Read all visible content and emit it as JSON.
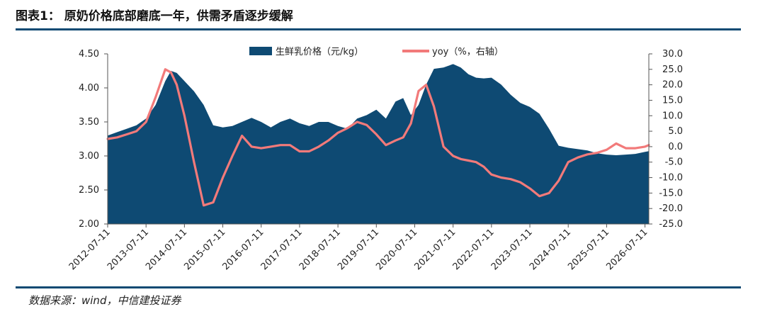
{
  "header": {
    "title": "图表1：    原奶价格底部磨底一年，供需矛盾逐步缓解"
  },
  "footer": {
    "source": "数据来源：wind，中信建投证券"
  },
  "colors": {
    "area": "#0e4a73",
    "line": "#f27a7a",
    "rule": "#0e4a73"
  },
  "chart_data": {
    "type": "area",
    "title": "",
    "x_ticks": [
      "2012-07-11",
      "2013-07-11",
      "2014-07-11",
      "2015-07-11",
      "2016-07-11",
      "2017-07-11",
      "2018-07-11",
      "2019-07-11",
      "2020-07-11",
      "2021-07-11",
      "2022-07-11",
      "2023-07-11",
      "2024-07-11",
      "2025-07-11",
      "2026-07-11"
    ],
    "left_axis": {
      "ylim": [
        2.0,
        4.5
      ],
      "ticks": [
        "2.00",
        "2.50",
        "3.00",
        "3.50",
        "4.00",
        "4.50"
      ]
    },
    "right_axis": {
      "ylim": [
        -25.0,
        30.0
      ],
      "ticks": [
        "-25.0",
        "-20.0",
        "-15.0",
        "-10.0",
        "-5.0",
        "0.0",
        "5.0",
        "10.0",
        "15.0",
        "20.0",
        "25.0",
        "30.0"
      ]
    },
    "legend": [
      "生鲜乳价格（元/kg）",
      "yoy（%，右轴）"
    ],
    "x": [
      2012.5,
      2012.75,
      2013.0,
      2013.25,
      2013.5,
      2013.75,
      2014.0,
      2014.15,
      2014.3,
      2014.5,
      2014.75,
      2015.0,
      2015.25,
      2015.5,
      2015.75,
      2016.0,
      2016.25,
      2016.5,
      2016.75,
      2017.0,
      2017.25,
      2017.5,
      2017.75,
      2018.0,
      2018.25,
      2018.5,
      2018.75,
      2019.0,
      2019.25,
      2019.5,
      2019.75,
      2020.0,
      2020.2,
      2020.4,
      2020.6,
      2020.8,
      2021.0,
      2021.25,
      2021.5,
      2021.7,
      2021.9,
      2022.1,
      2022.3,
      2022.5,
      2022.75,
      2023.0,
      2023.25,
      2023.5,
      2023.75,
      2024.0,
      2024.25,
      2024.5,
      2024.75,
      2025.0,
      2025.25,
      2025.5,
      2025.75,
      2026.0,
      2026.25,
      2026.5,
      2026.6
    ],
    "series": [
      {
        "name": "生鲜乳价格（元/kg）",
        "axis": "left",
        "values": [
          3.3,
          3.35,
          3.4,
          3.45,
          3.55,
          3.75,
          4.1,
          4.25,
          4.22,
          4.1,
          3.95,
          3.75,
          3.45,
          3.42,
          3.44,
          3.5,
          3.56,
          3.5,
          3.42,
          3.5,
          3.55,
          3.48,
          3.44,
          3.5,
          3.5,
          3.44,
          3.4,
          3.55,
          3.6,
          3.68,
          3.55,
          3.8,
          3.85,
          3.6,
          3.75,
          4.05,
          4.28,
          4.3,
          4.35,
          4.3,
          4.2,
          4.15,
          4.14,
          4.15,
          4.05,
          3.9,
          3.78,
          3.72,
          3.62,
          3.4,
          3.15,
          3.12,
          3.1,
          3.08,
          3.04,
          3.02,
          3.01,
          3.02,
          3.03,
          3.06,
          3.07
        ]
      },
      {
        "name": "yoy（%，右轴）",
        "axis": "right",
        "values": [
          2.5,
          3.0,
          4.0,
          5.0,
          8.0,
          16.0,
          25.0,
          24.0,
          20.0,
          10.0,
          -5.0,
          -19.0,
          -18.0,
          -10.0,
          -3.0,
          3.5,
          0.0,
          -0.5,
          0.0,
          0.5,
          0.5,
          -1.5,
          -1.5,
          0.0,
          2.0,
          4.5,
          6.0,
          8.0,
          7.0,
          4.0,
          0.5,
          2.0,
          3.0,
          7.5,
          18.0,
          20.0,
          13.0,
          0.0,
          -3.0,
          -4.0,
          -4.5,
          -5.0,
          -6.5,
          -9.0,
          -10.0,
          -10.5,
          -11.5,
          -13.5,
          -16.0,
          -15.0,
          -11.0,
          -5.0,
          -3.5,
          -2.5,
          -2.0,
          -1.0,
          1.0,
          -0.5,
          -0.5,
          0.0,
          0.5
        ]
      }
    ]
  }
}
